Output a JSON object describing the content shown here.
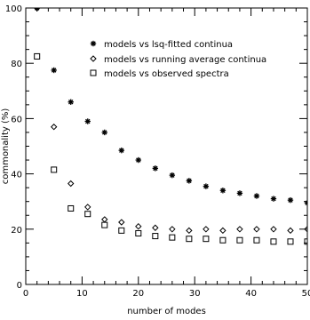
{
  "chart_data": {
    "type": "scatter",
    "xlabel": "number of modes",
    "ylabel": "commonality (%)",
    "xlim": [
      0,
      50
    ],
    "ylim": [
      0,
      100
    ],
    "xticks": [
      "0",
      "10",
      "20",
      "30",
      "40",
      "50"
    ],
    "yticks": [
      "0",
      "20",
      "40",
      "60",
      "80",
      "100"
    ],
    "grid": false,
    "legend_position": "top-right",
    "series": [
      {
        "name": "models vs lsq-fitted continua",
        "marker": "asterisk",
        "x": [
          2,
          5,
          8,
          11,
          14,
          17,
          20,
          23,
          26,
          29,
          32,
          35,
          38,
          41,
          44,
          47,
          50
        ],
        "y": [
          100,
          77.5,
          66,
          59,
          55,
          48.5,
          45,
          42,
          39.5,
          37.5,
          35.5,
          34,
          33,
          32,
          31,
          30.5,
          29.5
        ]
      },
      {
        "name": "models vs running average continua",
        "marker": "diamond",
        "x": [
          2,
          5,
          8,
          11,
          14,
          17,
          20,
          23,
          26,
          29,
          32,
          35,
          38,
          41,
          44,
          47,
          50
        ],
        "y": [
          100,
          57,
          36.5,
          28,
          23.5,
          22.5,
          21,
          20.5,
          20,
          19.5,
          20,
          19.5,
          20,
          20,
          20,
          19.5,
          20
        ]
      },
      {
        "name": "models vs observed spectra",
        "marker": "square",
        "x": [
          2,
          5,
          8,
          11,
          14,
          17,
          20,
          23,
          26,
          29,
          32,
          35,
          38,
          41,
          44,
          47,
          50
        ],
        "y": [
          82.5,
          41.5,
          27.5,
          25.5,
          21.5,
          19.5,
          18.5,
          17.5,
          17,
          16.5,
          16.5,
          16,
          16,
          16,
          15.5,
          15.5,
          15.5
        ]
      }
    ]
  }
}
